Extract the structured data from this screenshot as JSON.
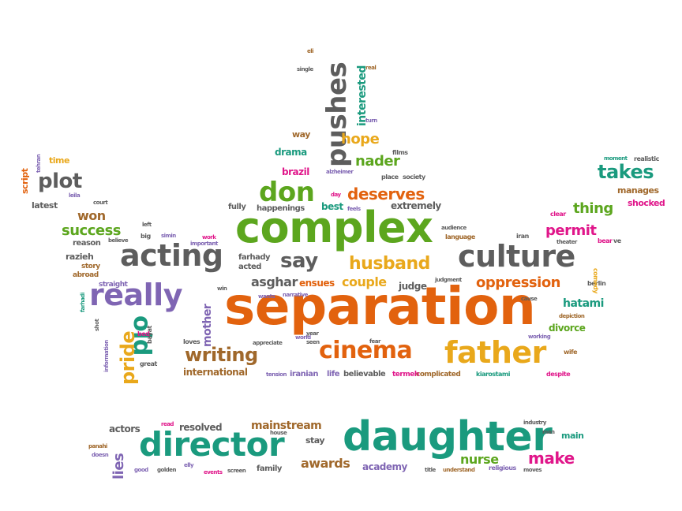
{
  "colors": {
    "orange": "#e2620e",
    "green": "#5ca61e",
    "gray": "#5d5d5d",
    "teal": "#1a9a7e",
    "purple": "#7f65b3",
    "yellow": "#e9a81b",
    "pink": "#e0168a",
    "brown": "#a0682b"
  },
  "words": [
    {
      "text": "separation",
      "color": "orange"
    },
    {
      "text": "complex",
      "color": "green"
    },
    {
      "text": "daughter",
      "color": "teal"
    },
    {
      "text": "director",
      "color": "teal"
    },
    {
      "text": "culture",
      "color": "gray"
    },
    {
      "text": "acting",
      "color": "gray"
    },
    {
      "text": "really",
      "color": "purple"
    },
    {
      "text": "father",
      "color": "yellow"
    },
    {
      "text": "cinema",
      "color": "orange"
    },
    {
      "text": "pushes",
      "color": "gray"
    },
    {
      "text": "husband",
      "color": "yellow"
    },
    {
      "text": "don",
      "color": "green"
    },
    {
      "text": "say",
      "color": "gray"
    },
    {
      "text": "old",
      "color": "teal"
    },
    {
      "text": "writing",
      "color": "brown"
    },
    {
      "text": "pride",
      "color": "yellow"
    },
    {
      "text": "plot",
      "color": "gray"
    },
    {
      "text": "takes",
      "color": "teal"
    },
    {
      "text": "oppression",
      "color": "orange"
    },
    {
      "text": "deserves",
      "color": "orange"
    },
    {
      "text": "success",
      "color": "green"
    },
    {
      "text": "permit",
      "color": "pink"
    },
    {
      "text": "thing",
      "color": "green"
    },
    {
      "text": "hope",
      "color": "yellow"
    },
    {
      "text": "nader",
      "color": "green"
    },
    {
      "text": "interested",
      "color": "teal"
    },
    {
      "text": "make",
      "color": "pink"
    },
    {
      "text": "awards",
      "color": "brown"
    },
    {
      "text": "nurse",
      "color": "green"
    },
    {
      "text": "lies",
      "color": "purple"
    },
    {
      "text": "mainstream",
      "color": "brown"
    },
    {
      "text": "resolved",
      "color": "gray"
    },
    {
      "text": "actors",
      "color": "gray"
    },
    {
      "text": "won",
      "color": "brown"
    },
    {
      "text": "hatami",
      "color": "teal"
    },
    {
      "text": "divorce",
      "color": "green"
    },
    {
      "text": "couple",
      "color": "yellow"
    },
    {
      "text": "asghar",
      "color": "gray"
    },
    {
      "text": "mother",
      "color": "purple"
    },
    {
      "text": "international",
      "color": "brown"
    },
    {
      "text": "razieh",
      "color": "gray"
    },
    {
      "text": "drama",
      "color": "teal"
    },
    {
      "text": "way",
      "color": "brown"
    },
    {
      "text": "brazil",
      "color": "pink"
    },
    {
      "text": "extremely",
      "color": "gray"
    },
    {
      "text": "judge",
      "color": "gray"
    },
    {
      "text": "ensues",
      "color": "orange"
    },
    {
      "text": "best",
      "color": "teal"
    },
    {
      "text": "fully",
      "color": "gray"
    },
    {
      "text": "happenings",
      "color": "gray"
    },
    {
      "text": "manages",
      "color": "brown"
    },
    {
      "text": "shocked",
      "color": "pink"
    },
    {
      "text": "academy",
      "color": "purple"
    },
    {
      "text": "main",
      "color": "teal"
    },
    {
      "text": "stay",
      "color": "gray"
    },
    {
      "text": "family",
      "color": "gray"
    },
    {
      "text": "script",
      "color": "orange"
    },
    {
      "text": "time",
      "color": "yellow"
    },
    {
      "text": "latest",
      "color": "gray"
    },
    {
      "text": "reason",
      "color": "gray"
    },
    {
      "text": "story",
      "color": "brown"
    },
    {
      "text": "abroad",
      "color": "brown"
    },
    {
      "text": "straight",
      "color": "purple"
    },
    {
      "text": "believable",
      "color": "gray"
    },
    {
      "text": "iranian",
      "color": "purple"
    },
    {
      "text": "life",
      "color": "purple"
    },
    {
      "text": "complicated",
      "color": "brown"
    },
    {
      "text": "termeh",
      "color": "pink"
    },
    {
      "text": "kiarostami",
      "color": "teal"
    },
    {
      "text": "despite",
      "color": "pink"
    },
    {
      "text": "wife",
      "color": "brown"
    },
    {
      "text": "working",
      "color": "purple"
    },
    {
      "text": "depiction",
      "color": "brown"
    },
    {
      "text": "cause",
      "color": "gray"
    },
    {
      "text": "berlin",
      "color": "gray"
    },
    {
      "text": "comedy",
      "color": "yellow"
    },
    {
      "text": "bear",
      "color": "pink"
    },
    {
      "text": "ve",
      "color": "gray"
    },
    {
      "text": "iran",
      "color": "gray"
    },
    {
      "text": "clear",
      "color": "pink"
    },
    {
      "text": "theater",
      "color": "gray"
    },
    {
      "text": "realistic",
      "color": "gray"
    },
    {
      "text": "moment",
      "color": "teal"
    },
    {
      "text": "farhady",
      "color": "gray"
    },
    {
      "text": "acted",
      "color": "gray"
    },
    {
      "text": "wants",
      "color": "purple"
    },
    {
      "text": "narrative",
      "color": "purple"
    },
    {
      "text": "appreciate",
      "color": "gray"
    },
    {
      "text": "seen",
      "color": "gray"
    },
    {
      "text": "year",
      "color": "gray"
    },
    {
      "text": "world",
      "color": "purple"
    },
    {
      "text": "fear",
      "color": "gray"
    },
    {
      "text": "tension",
      "color": "purple"
    },
    {
      "text": "loves",
      "color": "gray"
    },
    {
      "text": "great",
      "color": "gray"
    },
    {
      "text": "bayat",
      "color": "gray"
    },
    {
      "text": "bed",
      "color": "pink"
    },
    {
      "text": "big",
      "color": "gray"
    },
    {
      "text": "simin",
      "color": "purple"
    },
    {
      "text": "believe",
      "color": "gray"
    },
    {
      "text": "left",
      "color": "gray"
    },
    {
      "text": "work",
      "color": "pink"
    },
    {
      "text": "important",
      "color": "purple"
    },
    {
      "text": "win",
      "color": "gray"
    },
    {
      "text": "shot",
      "color": "gray"
    },
    {
      "text": "information",
      "color": "purple"
    },
    {
      "text": "farhadi",
      "color": "teal"
    },
    {
      "text": "court",
      "color": "gray"
    },
    {
      "text": "leila",
      "color": "purple"
    },
    {
      "text": "tehran",
      "color": "purple"
    },
    {
      "text": "single",
      "color": "gray"
    },
    {
      "text": "real",
      "color": "brown"
    },
    {
      "text": "eli",
      "color": "brown"
    },
    {
      "text": "turn",
      "color": "purple"
    },
    {
      "text": "films",
      "color": "gray"
    },
    {
      "text": "alzheimer",
      "color": "purple"
    },
    {
      "text": "place",
      "color": "gray"
    },
    {
      "text": "society",
      "color": "gray"
    },
    {
      "text": "day",
      "color": "pink"
    },
    {
      "text": "feels",
      "color": "purple"
    },
    {
      "text": "audience",
      "color": "gray"
    },
    {
      "text": "language",
      "color": "brown"
    },
    {
      "text": "judgment",
      "color": "gray"
    },
    {
      "text": "read",
      "color": "pink"
    },
    {
      "text": "house",
      "color": "gray"
    },
    {
      "text": "panahi",
      "color": "brown"
    },
    {
      "text": "doesn",
      "color": "purple"
    },
    {
      "text": "good",
      "color": "purple"
    },
    {
      "text": "golden",
      "color": "gray"
    },
    {
      "text": "elly",
      "color": "purple"
    },
    {
      "text": "events",
      "color": "pink"
    },
    {
      "text": "screen",
      "color": "gray"
    },
    {
      "text": "title",
      "color": "gray"
    },
    {
      "text": "understand",
      "color": "brown"
    },
    {
      "text": "religious",
      "color": "purple"
    },
    {
      "text": "moves",
      "color": "gray"
    },
    {
      "text": "industry",
      "color": "gray"
    },
    {
      "text": "man",
      "color": "gray"
    }
  ]
}
